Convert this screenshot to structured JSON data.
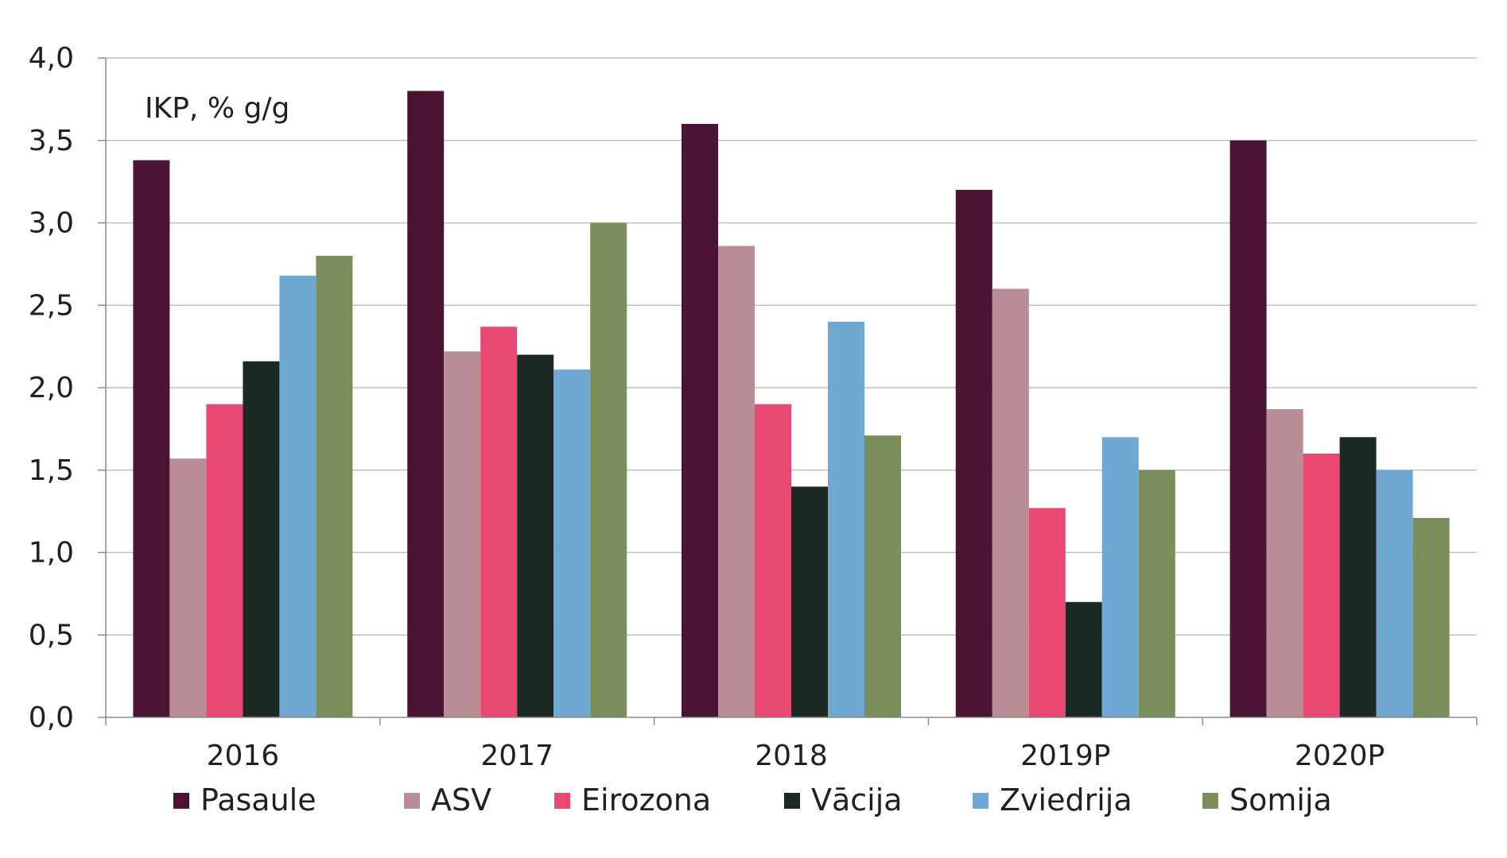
{
  "chart_data": {
    "type": "bar",
    "annotation": "IKP, % g/g",
    "categories": [
      "2016",
      "2017",
      "2018",
      "2019P",
      "2020P"
    ],
    "series": [
      {
        "name": "Pasaule",
        "color": "#4b1434",
        "values": [
          3.38,
          3.8,
          3.6,
          3.2,
          3.5
        ]
      },
      {
        "name": "ASV",
        "color": "#b98d96",
        "values": [
          1.57,
          2.22,
          2.86,
          2.6,
          1.87
        ]
      },
      {
        "name": "Eirozona",
        "color": "#e94873",
        "values": [
          1.9,
          2.37,
          1.9,
          1.27,
          1.6
        ]
      },
      {
        "name": "Vācija",
        "color": "#1b2a22",
        "values": [
          2.16,
          2.2,
          1.4,
          0.7,
          1.7
        ]
      },
      {
        "name": "Zviedrija",
        "color": "#6fa9d2",
        "values": [
          2.68,
          2.11,
          2.4,
          1.7,
          1.5
        ]
      },
      {
        "name": "Somija",
        "color": "#7a8d5a",
        "values": [
          2.8,
          3.0,
          1.71,
          1.5,
          1.21
        ]
      }
    ],
    "yticks": [
      "0,0",
      "0,5",
      "1,0",
      "1,5",
      "2,0",
      "2,5",
      "3,0",
      "3,5",
      "4,0"
    ],
    "ylim": [
      0,
      4
    ],
    "grid": true,
    "legend_position": "bottom"
  }
}
